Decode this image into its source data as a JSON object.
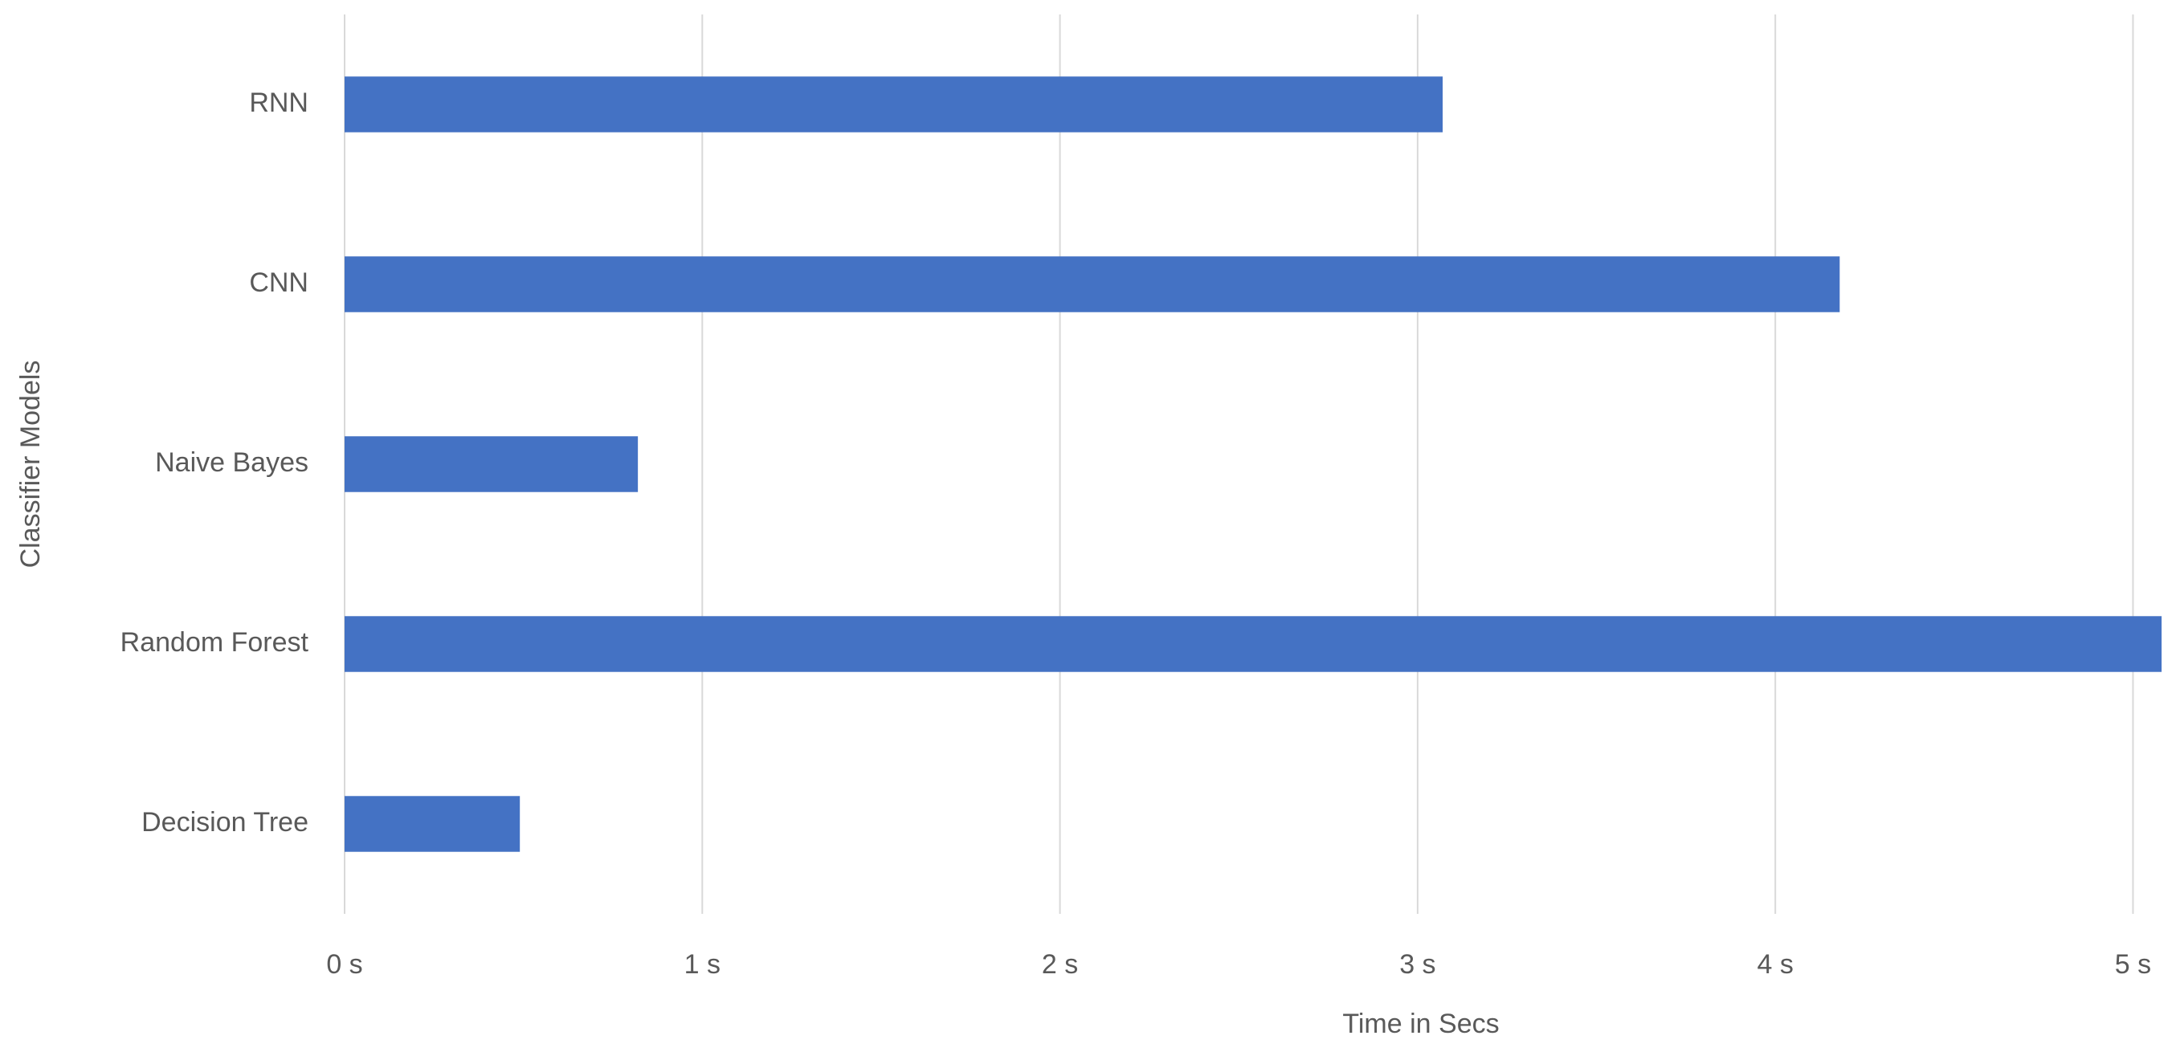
{
  "chart_data": {
    "type": "hbar",
    "x_label": "Time in Secs",
    "y_label": "Classifier Models",
    "categories": [
      "RNN",
      "CNN",
      "Naive  Bayes",
      "Random Forest",
      "Decision Tree"
    ],
    "values": [
      3.07,
      4.18,
      0.82,
      5.08,
      0.49
    ],
    "color": "#4472c4",
    "xlim": [
      0,
      5.1
    ],
    "xticks": [
      {
        "value": 0,
        "label": "0 s"
      },
      {
        "value": 1,
        "label": "1 s"
      },
      {
        "value": 2,
        "label": "2 s"
      },
      {
        "value": 3,
        "label": "3 s"
      },
      {
        "value": 4,
        "label": "4 s"
      },
      {
        "value": 5,
        "label": "5 s"
      }
    ],
    "grid": true
  }
}
